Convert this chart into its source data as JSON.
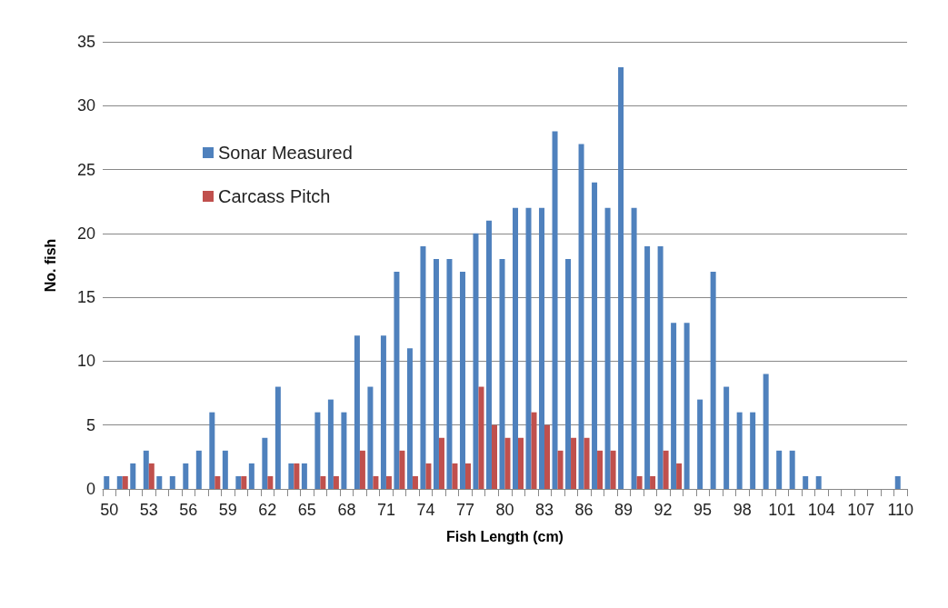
{
  "chart_data": {
    "type": "bar",
    "xlabel": "Fish Length (cm)",
    "ylabel": "No. fish",
    "categories": [
      "50",
      null,
      null,
      "53",
      null,
      null,
      "56",
      null,
      null,
      "59",
      null,
      null,
      "62",
      null,
      null,
      "65",
      null,
      null,
      "68",
      null,
      null,
      "71",
      null,
      null,
      "74",
      null,
      null,
      "77",
      null,
      null,
      "80",
      null,
      null,
      "83",
      null,
      null,
      "86",
      null,
      null,
      "89",
      null,
      null,
      "92",
      null,
      null,
      "95",
      null,
      null,
      "98",
      null,
      null,
      "101",
      null,
      null,
      "104",
      null,
      null,
      "107",
      null,
      null,
      "110"
    ],
    "series": [
      {
        "name": "Sonar Measured",
        "color": "#4f81bd",
        "values": [
          1,
          1,
          2,
          3,
          1,
          1,
          2,
          3,
          6,
          3,
          1,
          2,
          4,
          8,
          2,
          2,
          6,
          7,
          6,
          12,
          8,
          12,
          17,
          11,
          19,
          18,
          18,
          17,
          20,
          21,
          18,
          22,
          22,
          22,
          28,
          18,
          27,
          24,
          22,
          33,
          22,
          19,
          19,
          13,
          13,
          7,
          17,
          8,
          6,
          6,
          9,
          3,
          3,
          1,
          1,
          0,
          0,
          0,
          0,
          0,
          1
        ]
      },
      {
        "name": "Carcass Pitch",
        "color": "#c0504d",
        "values": [
          0,
          1,
          0,
          2,
          0,
          0,
          0,
          0,
          1,
          0,
          1,
          0,
          1,
          0,
          2,
          0,
          1,
          1,
          0,
          3,
          1,
          1,
          3,
          1,
          2,
          4,
          2,
          2,
          8,
          5,
          4,
          4,
          6,
          5,
          3,
          4,
          4,
          3,
          3,
          0,
          1,
          1,
          3,
          2,
          0,
          0,
          0,
          0,
          0,
          0,
          0,
          0,
          0,
          0,
          0,
          0,
          0,
          0,
          0,
          0,
          0
        ]
      }
    ],
    "ylim": [
      0,
      35
    ],
    "yticks": [
      0,
      5,
      10,
      15,
      20,
      25,
      30,
      35
    ],
    "grid": "y",
    "legend": "top left"
  }
}
